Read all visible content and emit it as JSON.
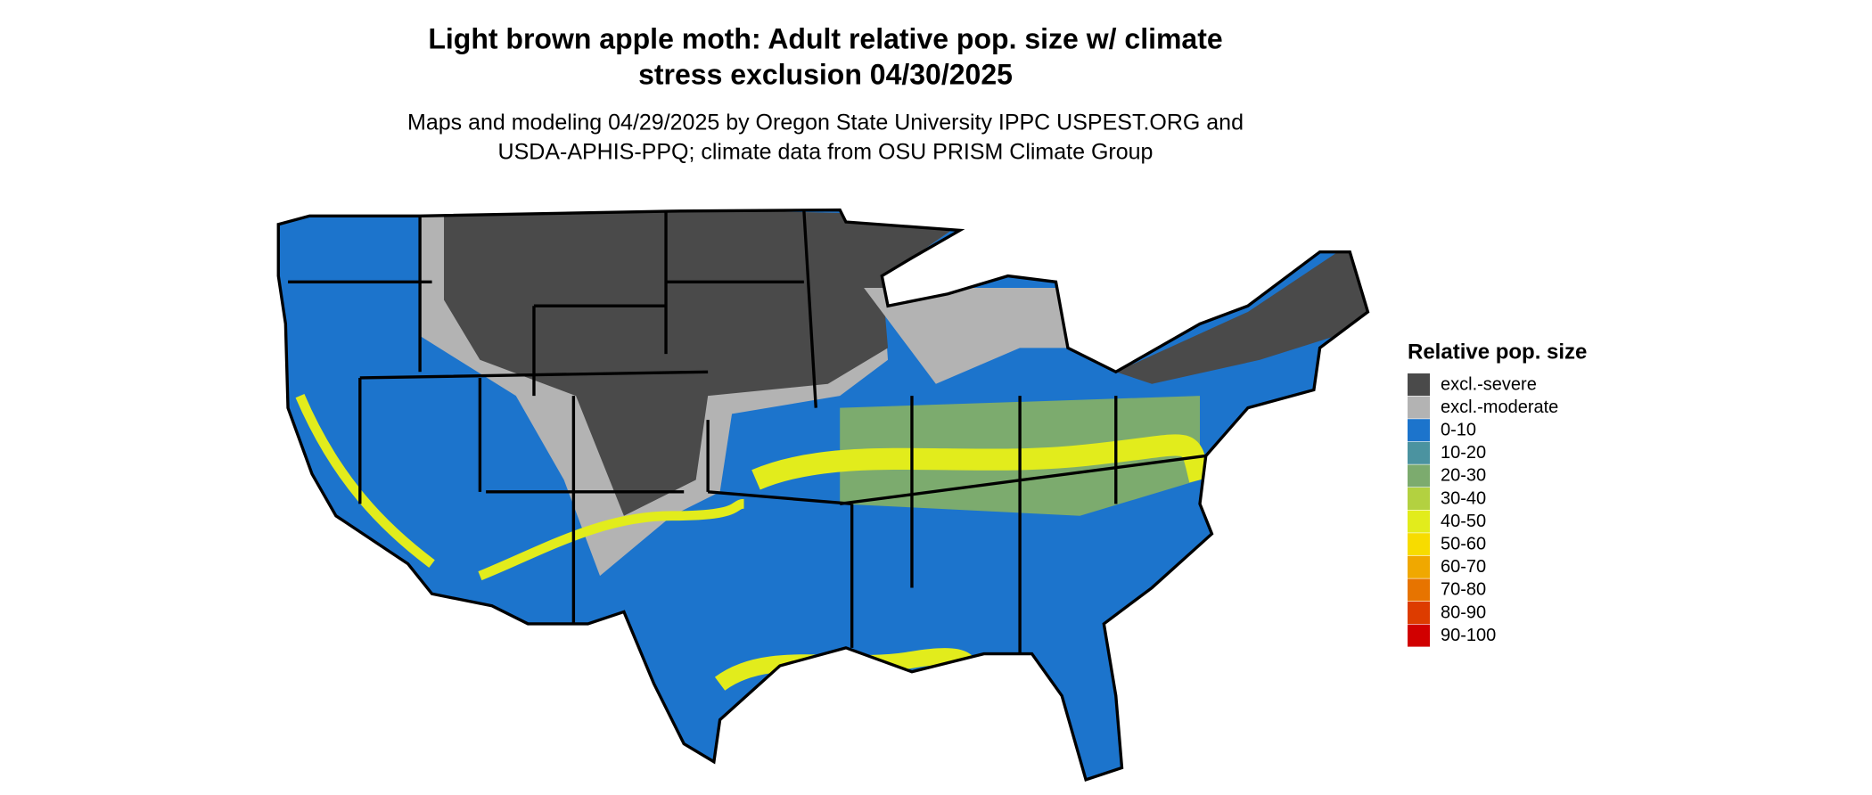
{
  "header": {
    "title_lines": [
      "Light brown apple moth: Adult relative pop. size w/ climate",
      "stress exclusion 04/30/2025"
    ],
    "subtitle_lines": [
      "Maps and modeling 04/29/2025 by Oregon State University IPPC USPEST.ORG and",
      "USDA-APHIS-PPQ; climate data from OSU PRISM Climate Group"
    ]
  },
  "legend": {
    "title": "Relative pop. size",
    "items": [
      {
        "label": "excl.-severe",
        "color": "#4a4a4a"
      },
      {
        "label": "excl.-moderate",
        "color": "#b3b3b3"
      },
      {
        "label": "0-10",
        "color": "#1c74cc"
      },
      {
        "label": "10-20",
        "color": "#4b93a0"
      },
      {
        "label": "20-30",
        "color": "#7cab6e"
      },
      {
        "label": "30-40",
        "color": "#b3d140"
      },
      {
        "label": "40-50",
        "color": "#e2ec1c"
      },
      {
        "label": "50-60",
        "color": "#f7dc00"
      },
      {
        "label": "60-70",
        "color": "#f0a800"
      },
      {
        "label": "70-80",
        "color": "#e77400"
      },
      {
        "label": "80-90",
        "color": "#dd3c00"
      },
      {
        "label": "90-100",
        "color": "#d10000"
      }
    ]
  }
}
